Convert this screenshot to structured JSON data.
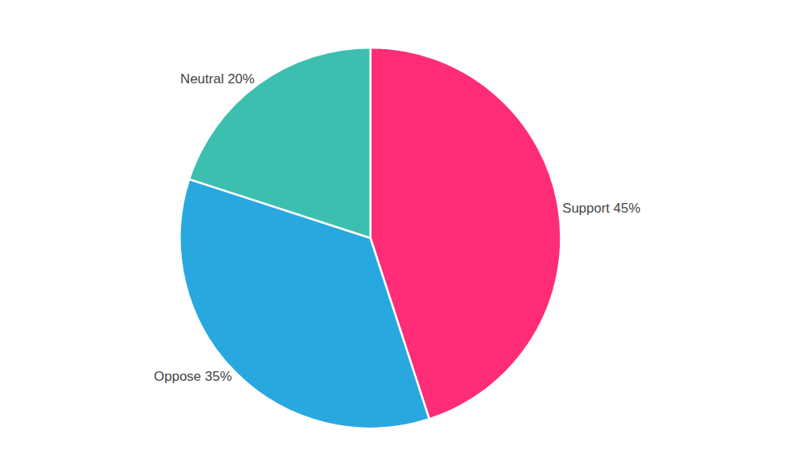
{
  "chart_data": {
    "type": "pie",
    "values": [
      45,
      35,
      20
    ],
    "value_labels": [
      "Support 45%",
      "Oppose 35%",
      "Neutral 20%"
    ],
    "colors": [
      "#FF2D78",
      "#29A8E0",
      "#3DBFB0"
    ],
    "data_labels": true
  }
}
